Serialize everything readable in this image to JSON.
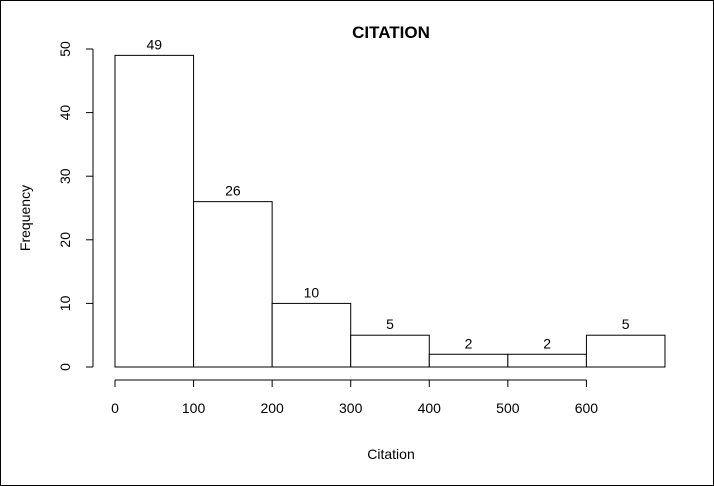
{
  "chart_data": {
    "type": "bar",
    "title": "CITATION",
    "xlabel": "Citation",
    "ylabel": "Frequency",
    "bins": [
      {
        "start": 0,
        "end": 100,
        "count": 49
      },
      {
        "start": 100,
        "end": 200,
        "count": 26
      },
      {
        "start": 200,
        "end": 300,
        "count": 10
      },
      {
        "start": 300,
        "end": 400,
        "count": 5
      },
      {
        "start": 400,
        "end": 500,
        "count": 2
      },
      {
        "start": 500,
        "end": 600,
        "count": 2
      },
      {
        "start": 600,
        "end": 700,
        "count": 5
      }
    ],
    "xlim": [
      0,
      700
    ],
    "ylim": [
      0,
      50
    ],
    "x_ticks": [
      0,
      100,
      200,
      300,
      400,
      500,
      600
    ],
    "y_ticks": [
      0,
      10,
      20,
      30,
      40,
      50
    ],
    "grid": false,
    "colors": {
      "bar_fill": "#ffffff",
      "bar_stroke": "#000000"
    }
  }
}
